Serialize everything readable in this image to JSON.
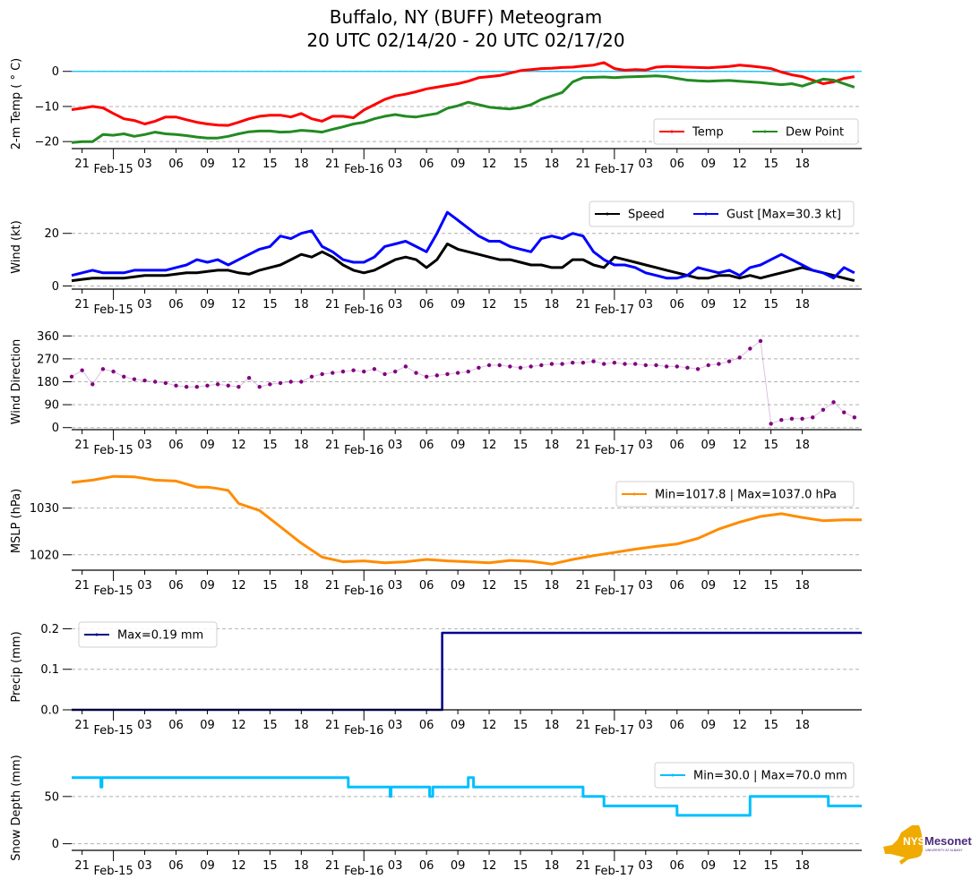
{
  "title": {
    "line1": "Buffalo, NY (BUFF) Meteogram",
    "line2": "20 UTC 02/14/20 - 20 UTC 02/17/20"
  },
  "logo": {
    "main": "NYS",
    "secondary": "Mesonet",
    "sub": "UNIVERSITY AT ALBANY",
    "color_state": "#f0ab00",
    "color_text": "#4b2a7b"
  },
  "x_axis": {
    "start_hours": 0,
    "end_hours": 75.7,
    "start_label": "20 UTC 02/14/20",
    "hour_ticks": [
      {
        "h": 1,
        "label": "21"
      },
      {
        "h": 7,
        "label": "03"
      },
      {
        "h": 10,
        "label": "06"
      },
      {
        "h": 13,
        "label": "09"
      },
      {
        "h": 16,
        "label": "12"
      },
      {
        "h": 19,
        "label": "15"
      },
      {
        "h": 22,
        "label": "18"
      },
      {
        "h": 25,
        "label": "21"
      },
      {
        "h": 31,
        "label": "03"
      },
      {
        "h": 34,
        "label": "06"
      },
      {
        "h": 37,
        "label": "09"
      },
      {
        "h": 40,
        "label": "12"
      },
      {
        "h": 43,
        "label": "15"
      },
      {
        "h": 46,
        "label": "18"
      },
      {
        "h": 49,
        "label": "21"
      },
      {
        "h": 55,
        "label": "03"
      },
      {
        "h": 58,
        "label": "06"
      },
      {
        "h": 61,
        "label": "09"
      },
      {
        "h": 64,
        "label": "12"
      },
      {
        "h": 67,
        "label": "15"
      },
      {
        "h": 70,
        "label": "18"
      }
    ],
    "day_ticks": [
      {
        "h": 4,
        "label": "Feb-15"
      },
      {
        "h": 28,
        "label": "Feb-16"
      },
      {
        "h": 52,
        "label": "Feb-17"
      }
    ]
  },
  "chart_data": [
    {
      "type": "line",
      "id": "temp",
      "ylabel": "2-m Temp ($^\\circ$C)",
      "ylabel_display": "2-m Temp ( ° C)",
      "ylim": [
        -22,
        3.5
      ],
      "yticks": [
        0,
        -10,
        -20
      ],
      "ytick_labels": [
        "0",
        "−10",
        "−20"
      ],
      "grid": true,
      "reference_line": {
        "y": 0,
        "color": "#00bfff"
      },
      "legend": {
        "placement": "lower-right",
        "ncol": 2
      },
      "x_hours": [
        0,
        1,
        2,
        3,
        4,
        5,
        6,
        7,
        8,
        9,
        10,
        11,
        12,
        13,
        14,
        15,
        16,
        17,
        18,
        19,
        20,
        21,
        22,
        23,
        24,
        25,
        26,
        27,
        28,
        29,
        30,
        31,
        32,
        33,
        34,
        35,
        36,
        37,
        38,
        39,
        40,
        41,
        42,
        43,
        44,
        45,
        46,
        47,
        48,
        49,
        50,
        51,
        52,
        53,
        54,
        55,
        56,
        57,
        58,
        59,
        60,
        61,
        62,
        63,
        64,
        65,
        66,
        67,
        68,
        69,
        70,
        71,
        72,
        73,
        74,
        75
      ],
      "series": [
        {
          "name": "Temp",
          "color": "#ff0000",
          "values": [
            -10.9,
            -10.5,
            -10.0,
            -10.4,
            -12.0,
            -13.5,
            -14.0,
            -15.0,
            -14.2,
            -13.0,
            -13.0,
            -13.8,
            -14.5,
            -15.0,
            -15.3,
            -15.4,
            -14.5,
            -13.5,
            -12.8,
            -12.5,
            -12.5,
            -13.0,
            -12.0,
            -13.5,
            -14.2,
            -12.8,
            -12.8,
            -13.2,
            -11.0,
            -9.5,
            -8.0,
            -7.0,
            -6.5,
            -5.8,
            -5.0,
            -4.5,
            -4.0,
            -3.5,
            -2.8,
            -1.8,
            -1.5,
            -1.2,
            -0.5,
            0.2,
            0.5,
            0.8,
            0.9,
            1.1,
            1.2,
            1.5,
            1.8,
            2.5,
            0.8,
            0.3,
            0.5,
            0.4,
            1.2,
            1.4,
            1.3,
            1.2,
            1.1,
            1.0,
            1.2,
            1.4,
            1.8,
            1.5,
            1.2,
            0.8,
            -0.2,
            -1.0,
            -1.5,
            -2.5,
            -3.5,
            -3.0,
            -2.0,
            -1.5
          ]
        },
        {
          "name": "Dew Point",
          "color": "#228b22",
          "values": [
            -20.3,
            -20.0,
            -20.0,
            -18.0,
            -18.2,
            -17.8,
            -18.5,
            -18.0,
            -17.3,
            -17.8,
            -18.0,
            -18.3,
            -18.7,
            -19.0,
            -19.0,
            -18.5,
            -17.8,
            -17.2,
            -17.0,
            -17.0,
            -17.3,
            -17.2,
            -16.8,
            -17.0,
            -17.3,
            -16.5,
            -15.8,
            -15.0,
            -14.5,
            -13.5,
            -12.8,
            -12.3,
            -12.8,
            -13.0,
            -12.5,
            -12.0,
            -10.5,
            -9.8,
            -8.8,
            -9.5,
            -10.2,
            -10.5,
            -10.7,
            -10.3,
            -9.5,
            -8.0,
            -7.0,
            -6.0,
            -3.0,
            -1.8,
            -1.7,
            -1.6,
            -1.8,
            -1.6,
            -1.5,
            -1.4,
            -1.3,
            -1.5,
            -2.0,
            -2.5,
            -2.7,
            -2.8,
            -2.7,
            -2.6,
            -2.8,
            -3.0,
            -3.2,
            -3.5,
            -3.8,
            -3.5,
            -4.2,
            -3.2,
            -2.2,
            -2.5,
            -3.5,
            -4.5
          ]
        }
      ]
    },
    {
      "type": "line",
      "id": "wind",
      "ylabel": "Wind (kt)",
      "ylim": [
        -1.2,
        30.8
      ],
      "yticks": [
        0,
        20
      ],
      "ytick_labels": [
        "0",
        "20"
      ],
      "grid": true,
      "legend": {
        "placement": "upper-right",
        "ncol": 2
      },
      "x_hours": [
        0,
        1,
        2,
        3,
        4,
        5,
        6,
        7,
        8,
        9,
        10,
        11,
        12,
        13,
        14,
        15,
        16,
        17,
        18,
        19,
        20,
        21,
        22,
        23,
        24,
        25,
        26,
        27,
        28,
        29,
        30,
        31,
        32,
        33,
        34,
        35,
        36,
        37,
        38,
        39,
        40,
        41,
        42,
        43,
        44,
        45,
        46,
        47,
        48,
        49,
        50,
        51,
        52,
        53,
        54,
        55,
        56,
        57,
        58,
        59,
        60,
        61,
        62,
        63,
        64,
        65,
        66,
        67,
        68,
        69,
        70,
        71,
        72,
        73,
        74,
        75
      ],
      "series": [
        {
          "name": "Speed",
          "color": "#000000",
          "values": [
            2,
            2.5,
            3,
            3,
            3,
            3,
            3.5,
            4,
            4,
            4,
            4.5,
            5,
            5,
            5.5,
            6,
            6,
            5,
            4.5,
            6,
            7,
            8,
            10,
            12,
            11,
            13,
            11,
            8,
            6,
            5,
            6,
            8,
            10,
            11,
            10,
            7,
            10,
            16,
            14,
            13,
            12,
            11,
            10,
            10,
            9,
            8,
            8,
            7,
            7,
            10,
            10,
            8,
            7,
            11,
            10,
            9,
            8,
            7,
            6,
            5,
            4,
            3,
            3,
            4,
            4,
            3,
            4,
            3,
            4,
            5,
            6,
            7,
            6,
            5,
            4,
            3,
            2
          ]
        },
        {
          "name": "Gust [Max=30.3 kt]",
          "color": "#0000ff",
          "values": [
            4,
            5,
            6,
            5,
            5,
            5,
            6,
            6,
            6,
            6,
            7,
            8,
            10,
            9,
            10,
            8,
            10,
            12,
            14,
            15,
            19,
            18,
            20,
            21,
            15,
            13,
            10,
            9,
            9,
            11,
            15,
            16,
            17,
            15,
            13,
            20,
            28,
            25,
            22,
            19,
            17,
            17,
            15,
            14,
            13,
            18,
            19,
            18,
            20,
            19,
            13,
            10,
            8,
            8,
            7,
            5,
            4,
            3,
            3,
            4,
            7,
            6,
            5,
            6,
            4,
            7,
            8,
            10,
            12,
            10,
            8,
            6,
            5,
            3,
            7,
            5
          ]
        }
      ]
    },
    {
      "type": "scatter",
      "id": "wind_direction",
      "ylabel": "Wind Direction",
      "ylim": [
        -8,
        368
      ],
      "yticks": [
        0,
        90,
        180,
        270,
        360
      ],
      "ytick_labels": [
        "0",
        "90",
        "180",
        "270",
        "360"
      ],
      "grid": true,
      "x_hours": [
        0,
        1,
        2,
        3,
        4,
        5,
        6,
        7,
        8,
        9,
        10,
        11,
        12,
        13,
        14,
        15,
        16,
        17,
        18,
        19,
        20,
        21,
        22,
        23,
        24,
        25,
        26,
        27,
        28,
        29,
        30,
        31,
        32,
        33,
        34,
        35,
        36,
        37,
        38,
        39,
        40,
        41,
        42,
        43,
        44,
        45,
        46,
        47,
        48,
        49,
        50,
        51,
        52,
        53,
        54,
        55,
        56,
        57,
        58,
        59,
        60,
        61,
        62,
        63,
        64,
        65,
        66,
        67,
        68,
        69,
        70,
        71,
        72,
        73,
        74,
        75
      ],
      "series": [
        {
          "name": "Wind Direction",
          "color": "#800080",
          "values": [
            200,
            225,
            170,
            230,
            220,
            200,
            190,
            185,
            180,
            175,
            165,
            160,
            160,
            165,
            170,
            165,
            160,
            195,
            160,
            170,
            175,
            180,
            180,
            200,
            210,
            215,
            220,
            225,
            220,
            230,
            210,
            220,
            240,
            215,
            200,
            205,
            210,
            215,
            220,
            235,
            245,
            245,
            240,
            235,
            240,
            245,
            250,
            250,
            255,
            255,
            260,
            250,
            255,
            250,
            250,
            245,
            245,
            240,
            240,
            235,
            230,
            245,
            250,
            260,
            275,
            310,
            340,
            15,
            30,
            35,
            35,
            40,
            70,
            100,
            60,
            40
          ]
        }
      ]
    },
    {
      "type": "line",
      "id": "mslp",
      "ylabel": "MSLP (hPa)",
      "ylim": [
        1016.7,
        1037.8
      ],
      "yticks": [
        1020,
        1030
      ],
      "ytick_labels": [
        "1020",
        "1030"
      ],
      "grid": true,
      "legend": {
        "placement": "upper-right",
        "ncol": 1
      },
      "x_hours": [
        0,
        2,
        4,
        6,
        8,
        10,
        12,
        13,
        14,
        15,
        16,
        18,
        20,
        22,
        24,
        26,
        28,
        30,
        32,
        34,
        36,
        38,
        40,
        42,
        44,
        46,
        48,
        50,
        52,
        54,
        56,
        58,
        60,
        62,
        64,
        66,
        68,
        70,
        72,
        74,
        75.7
      ],
      "series": [
        {
          "name": "Min=1017.8 | Max=1037.0 hPa",
          "color": "#ff8c00",
          "values": [
            1035.5,
            1036.0,
            1036.8,
            1036.7,
            1036.0,
            1035.8,
            1034.5,
            1034.5,
            1034.2,
            1033.8,
            1031.0,
            1029.5,
            1026.0,
            1022.5,
            1019.5,
            1018.5,
            1018.7,
            1018.3,
            1018.5,
            1019.0,
            1018.7,
            1018.5,
            1018.3,
            1018.8,
            1018.6,
            1018.0,
            1019.0,
            1019.8,
            1020.5,
            1021.2,
            1021.8,
            1022.3,
            1023.5,
            1025.5,
            1027.0,
            1028.2,
            1028.8,
            1028.0,
            1027.3,
            1027.5,
            1027.5
          ]
        }
      ]
    },
    {
      "type": "line",
      "id": "precip",
      "ylabel": "Precip (mm)",
      "ylim": [
        0.0,
        0.212
      ],
      "yticks": [
        0.0,
        0.1,
        0.2
      ],
      "ytick_labels": [
        "0.0",
        "0.1",
        "0.2"
      ],
      "grid": true,
      "legend": {
        "placement": "upper-left",
        "ncol": 1
      },
      "x_hours": [
        0,
        35.5,
        35.5,
        75.7
      ],
      "series": [
        {
          "name": "Max=0.19 mm",
          "color": "#00008b",
          "values": [
            0,
            0,
            0.19,
            0.19
          ]
        }
      ]
    },
    {
      "type": "line",
      "id": "snow_depth",
      "ylabel": "Snow Depth (mm)",
      "ylim": [
        -7,
        83
      ],
      "yticks": [
        0,
        50
      ],
      "ytick_labels": [
        "0",
        "50"
      ],
      "grid": true,
      "legend": {
        "placement": "upper-right",
        "ncol": 1
      },
      "x_hours": [
        0,
        2.8,
        2.8,
        2.9,
        2.9,
        26.5,
        26.5,
        30.5,
        30.5,
        30.6,
        30.6,
        34.3,
        34.3,
        34.6,
        34.6,
        38.0,
        38.0,
        38.5,
        38.5,
        49.0,
        49.0,
        51.0,
        51.0,
        58.0,
        58.0,
        65.0,
        65.0,
        72.5,
        72.5,
        75.7
      ],
      "series": [
        {
          "name": "Min=30.0 | Max=70.0 mm",
          "color": "#00bfff",
          "values": [
            70,
            70,
            60,
            60,
            70,
            70,
            60,
            60,
            50,
            50,
            60,
            60,
            50,
            50,
            60,
            60,
            70,
            70,
            60,
            60,
            50,
            50,
            40,
            40,
            30,
            30,
            50,
            50,
            40,
            40
          ]
        }
      ]
    }
  ]
}
